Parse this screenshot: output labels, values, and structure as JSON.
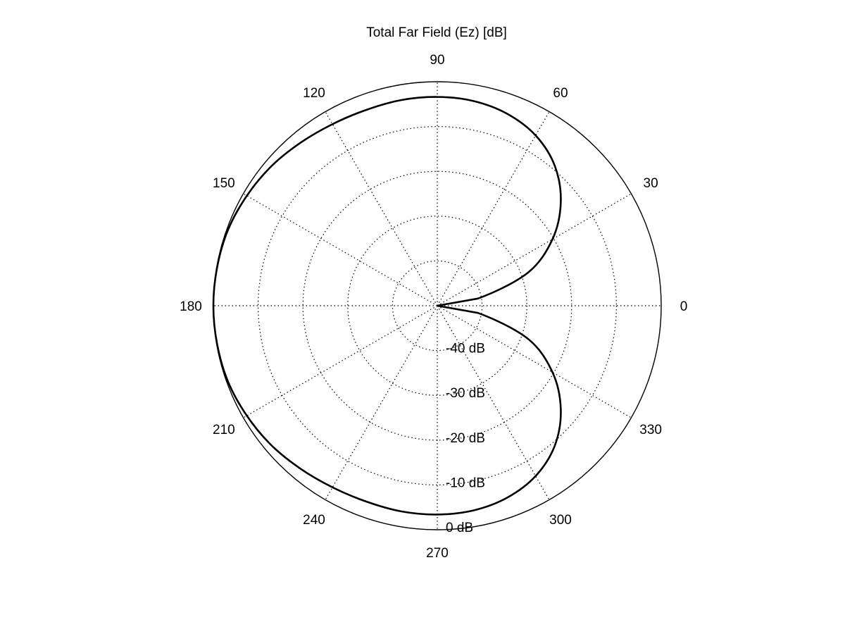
{
  "chart_data": {
    "type": "polar-line",
    "title": "Total Far Field (Ez) [dB]",
    "angle_unit": "degrees",
    "angle_ticks": [
      0,
      30,
      60,
      90,
      120,
      150,
      180,
      210,
      240,
      270,
      300,
      330
    ],
    "angle_tick_labels": [
      "0",
      "30",
      "60",
      "90",
      "120",
      "150",
      "180",
      "210",
      "240",
      "270",
      "300",
      "330"
    ],
    "radial_axis": {
      "unit": "dB",
      "range": [
        -50,
        0
      ],
      "ticks": [
        -40,
        -30,
        -20,
        -10,
        0
      ],
      "tick_labels": [
        "-40 dB",
        "-30 dB",
        "-20 dB",
        "-10 dB",
        "0 dB"
      ],
      "label_angle_deg": 270
    },
    "grid": true,
    "grid_style": "dotted",
    "line_color": "#000000",
    "series": [
      {
        "theta": [
          0,
          10,
          20,
          30,
          40,
          50,
          60,
          70,
          80,
          90,
          100,
          110,
          120,
          130,
          140,
          150,
          160,
          170,
          180,
          190,
          200,
          210,
          220,
          230,
          240,
          250,
          260,
          270,
          280,
          290,
          300,
          310,
          320,
          330,
          340,
          350,
          360
        ],
        "values": [
          -50,
          -40.8,
          -28.5,
          -20.3,
          -14.0,
          -9.2,
          -6.1,
          -4.4,
          -3.6,
          -3.4,
          -3.4,
          -3.5,
          -3.2,
          -2.5,
          -1.6,
          -0.9,
          -0.3,
          -0.1,
          0,
          -0.1,
          -0.3,
          -0.9,
          -1.6,
          -2.5,
          -3.2,
          -3.5,
          -3.4,
          -3.4,
          -3.6,
          -4.4,
          -6.1,
          -9.2,
          -14.0,
          -20.3,
          -28.5,
          -40.8,
          -50
        ]
      }
    ]
  }
}
